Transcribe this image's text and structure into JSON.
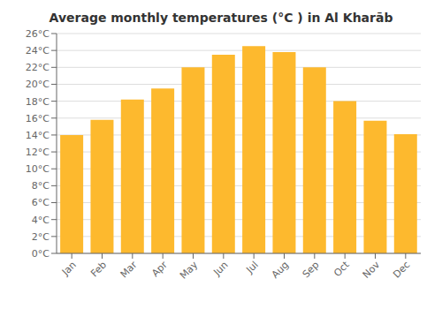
{
  "chart_data": {
    "type": "bar",
    "title": "Average monthly temperatures (°C ) in Al Kharāb",
    "categories": [
      "Jan",
      "Feb",
      "Mar",
      "Apr",
      "May",
      "Jun",
      "Jul",
      "Aug",
      "Sep",
      "Oct",
      "Nov",
      "Dec"
    ],
    "values": [
      14.0,
      15.8,
      18.2,
      19.5,
      22.0,
      23.5,
      24.5,
      23.8,
      22.0,
      18.0,
      15.7,
      14.1
    ],
    "color": "#FDB92E",
    "ylim": [
      0,
      26
    ],
    "yticks": [
      {
        "value": 0,
        "label": "0°C"
      },
      {
        "value": 2,
        "label": "2°C"
      },
      {
        "value": 4,
        "label": "4°C"
      },
      {
        "value": 6,
        "label": "6°C"
      },
      {
        "value": 8,
        "label": "8°C"
      },
      {
        "value": 10,
        "label": "10°C"
      },
      {
        "value": 12,
        "label": "12°C"
      },
      {
        "value": 14,
        "label": "14°C"
      },
      {
        "value": 16,
        "label": "16°C"
      },
      {
        "value": 18,
        "label": "18°C"
      },
      {
        "value": 20,
        "label": "20°C"
      },
      {
        "value": 22,
        "label": "22°C"
      },
      {
        "value": 24,
        "label": "24°C"
      },
      {
        "value": 26,
        "label": "26°C"
      }
    ],
    "grid": true
  }
}
